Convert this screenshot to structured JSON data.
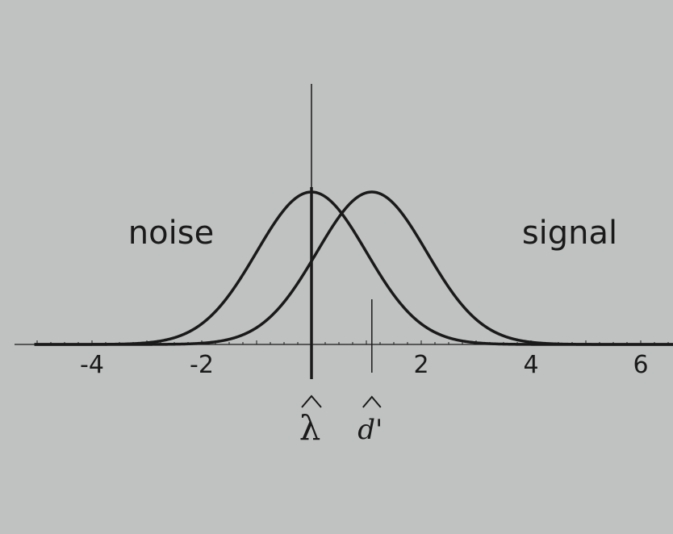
{
  "chart_data": {
    "type": "line",
    "title": "",
    "xlabel": "",
    "ylabel": "",
    "xlim": [
      -5,
      6.6
    ],
    "x_ticks": [
      -4,
      -2,
      2,
      4,
      6
    ],
    "x_tick_labels": [
      "-4",
      "-2",
      "2",
      "4",
      "6"
    ],
    "grid": false,
    "series": [
      {
        "name": "noise",
        "distribution": "normal",
        "mean": 0,
        "sd": 1
      },
      {
        "name": "signal",
        "distribution": "normal",
        "mean": 1.1,
        "sd": 1
      }
    ],
    "markers": [
      {
        "label": "λ",
        "x": 0,
        "style": "thick"
      },
      {
        "label": "d'",
        "x": 1.1,
        "style": "thin"
      }
    ],
    "colors": {
      "background": "#c0c2c1",
      "ink": "#1a1a1a"
    }
  }
}
